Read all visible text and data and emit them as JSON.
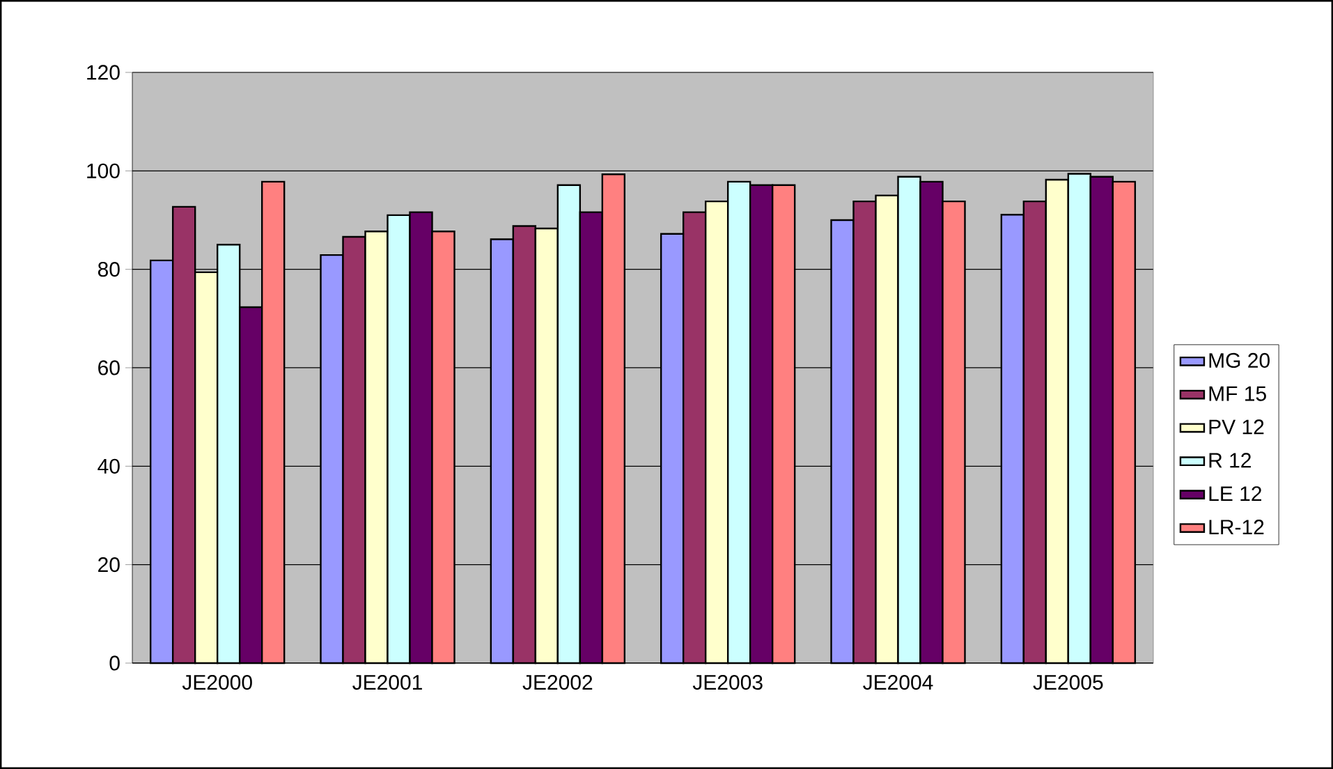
{
  "chart_data": {
    "type": "bar",
    "categories": [
      "JE2000",
      "JE2001",
      "JE2002",
      "JE2003",
      "JE2004",
      "JE2005"
    ],
    "series": [
      {
        "name": "MG 20",
        "color": "#9999ff",
        "values": [
          81.8,
          82.9,
          86.1,
          87.2,
          90,
          91.1
        ]
      },
      {
        "name": "MF 15",
        "color": "#993366",
        "values": [
          92.7,
          86.6,
          88.8,
          91.6,
          93.8,
          93.8
        ]
      },
      {
        "name": "PV 12",
        "color": "#ffffcc",
        "values": [
          79.4,
          87.7,
          88.3,
          93.8,
          95,
          98.2
        ]
      },
      {
        "name": "R 12",
        "color": "#ccffff",
        "values": [
          85,
          91,
          97.1,
          97.8,
          98.8,
          99.4
        ]
      },
      {
        "name": "LE 12",
        "color": "#660066",
        "values": [
          72.3,
          91.6,
          91.6,
          97.1,
          97.8,
          98.8
        ]
      },
      {
        "name": "LR-12",
        "color": "#ff8080",
        "values": [
          97.8,
          87.7,
          99.3,
          97.1,
          93.8,
          97.8
        ]
      }
    ],
    "ylim": [
      0,
      120
    ],
    "yticks": [
      0,
      20,
      40,
      60,
      80,
      100,
      120
    ],
    "grid": "y",
    "legend": "right"
  }
}
